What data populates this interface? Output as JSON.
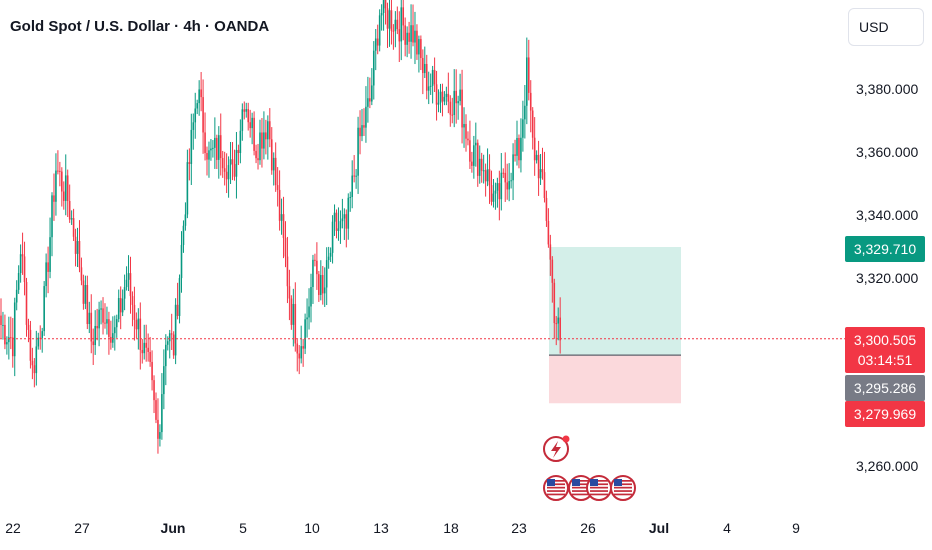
{
  "header": {
    "title": "Gold Spot / U.S. Dollar · 4h · OANDA",
    "currency": "USD"
  },
  "colors": {
    "up": "#089981",
    "down": "#f23645",
    "target_zone": "#d4efe9",
    "stop_zone": "#fbd9dc",
    "entry_line": "#5d606b",
    "current_tag": "#f23645",
    "target_tag": "#089981",
    "entry_tag": "#787b86"
  },
  "price_tags": {
    "target_price": "3,329.710",
    "current_price": "3,300.505",
    "countdown": "03:14:51",
    "entry_price": "3,295.286",
    "stop_price": "3,279.969"
  },
  "events": {
    "icons": [
      "lightning-event-icon",
      "us-flag-icon",
      "us-flag-icon",
      "us-flag-icon",
      "us-flag-icon"
    ]
  },
  "chart_data": {
    "type": "candlestick",
    "title": "Gold Spot / U.S. Dollar · 4h · OANDA",
    "ylabel": "USD",
    "ylim": [
      3250,
      3400
    ],
    "y_ticks": [
      "3,260.000",
      "3,280.000",
      "3,300.000",
      "3,320.000",
      "3,340.000",
      "3,360.000",
      "3,380.000"
    ],
    "y_tick_values": [
      3260,
      3280,
      3300,
      3320,
      3340,
      3360,
      3380
    ],
    "x_ticks": [
      "22",
      "27",
      "Jun",
      "5",
      "10",
      "13",
      "18",
      "23",
      "26",
      "Jul",
      "4",
      "9"
    ],
    "x_tick_bold": [
      false,
      false,
      true,
      false,
      false,
      false,
      false,
      false,
      false,
      true,
      false,
      false
    ],
    "grid": false,
    "current_price": 3300.505,
    "position": {
      "entry": 3295.286,
      "target": 3329.71,
      "stop": 3279.969
    },
    "close_anchors": [
      [
        0,
        3305
      ],
      [
        6,
        3300
      ],
      [
        10,
        3330
      ],
      [
        16,
        3290
      ],
      [
        22,
        3312
      ],
      [
        28,
        3355
      ],
      [
        34,
        3345
      ],
      [
        40,
        3325
      ],
      [
        46,
        3300
      ],
      [
        52,
        3310
      ],
      [
        58,
        3302
      ],
      [
        64,
        3320
      ],
      [
        70,
        3304
      ],
      [
        76,
        3288
      ],
      [
        80,
        3268
      ],
      [
        84,
        3302
      ],
      [
        88,
        3298
      ],
      [
        94,
        3345
      ],
      [
        100,
        3380
      ],
      [
        106,
        3358
      ],
      [
        112,
        3362
      ],
      [
        118,
        3352
      ],
      [
        124,
        3378
      ],
      [
        130,
        3362
      ],
      [
        136,
        3370
      ],
      [
        142,
        3340
      ],
      [
        148,
        3310
      ],
      [
        152,
        3298
      ],
      [
        156,
        3308
      ],
      [
        160,
        3325
      ],
      [
        164,
        3313
      ],
      [
        170,
        3336
      ],
      [
        176,
        3335
      ],
      [
        182,
        3362
      ],
      [
        188,
        3376
      ],
      [
        193,
        3405
      ],
      [
        210,
        3398
      ],
      [
        216,
        3384
      ],
      [
        222,
        3380
      ],
      [
        228,
        3378
      ],
      [
        234,
        3375
      ],
      [
        240,
        3360
      ],
      [
        246,
        3356
      ],
      [
        252,
        3343
      ],
      [
        258,
        3353
      ],
      [
        264,
        3360
      ],
      [
        268,
        3385
      ],
      [
        271,
        3362
      ],
      [
        274,
        3356
      ],
      [
        278,
        3340
      ],
      [
        282,
        3310
      ],
      [
        285,
        3300
      ]
    ]
  }
}
